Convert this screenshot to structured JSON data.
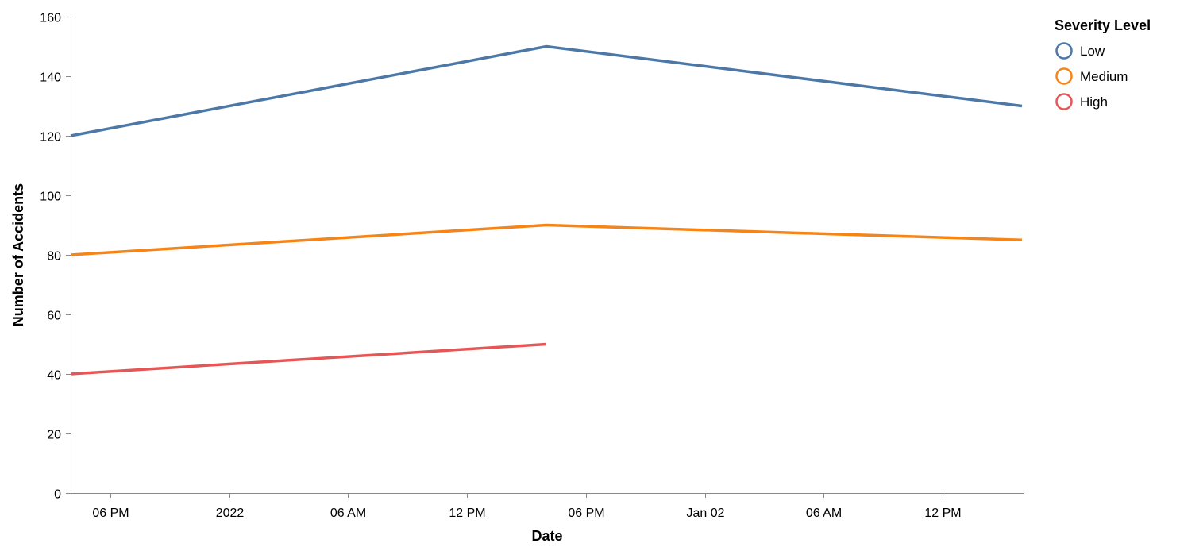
{
  "chart_data": {
    "type": "line",
    "x_type": "datetime",
    "xlabel": "Date",
    "ylabel": "Number of Accidents",
    "ylim": [
      0,
      160
    ],
    "y_ticks": [
      0,
      20,
      40,
      60,
      80,
      100,
      120,
      140,
      160
    ],
    "xlim": [
      "2022-01-01T16:00:00",
      "2022-01-02T16:00:00"
    ],
    "x_ticks": [
      {
        "t": "2022-01-01T18:00:00",
        "label": "06 PM"
      },
      {
        "t": "2022-01-02T00:00:00",
        "label": "2022"
      },
      {
        "t": "2022-01-02T06:00:00",
        "label": "06 AM"
      },
      {
        "t": "2022-01-02T12:00:00",
        "label": "12 PM"
      },
      {
        "t": "2022-01-02T18:00:00",
        "label": "06 PM"
      },
      {
        "t": "2022-01-03T00:00:00",
        "label": "Jan 02"
      },
      {
        "t": "2022-01-03T06:00:00",
        "label": "06 AM"
      },
      {
        "t": "2022-01-03T12:00:00",
        "label": "12 PM"
      }
    ],
    "legend": {
      "title": "Severity Level",
      "placement": "top-right"
    },
    "grid": false,
    "series": [
      {
        "name": "Low",
        "color": "#4c78a8",
        "points": [
          {
            "x": "2022-01-01T16:00:00",
            "y": 120
          },
          {
            "x": "2022-01-02T16:00:00",
            "y": 150
          },
          {
            "x": "2022-01-03T16:00:00",
            "y": 130
          }
        ]
      },
      {
        "name": "Medium",
        "color": "#f58518",
        "points": [
          {
            "x": "2022-01-01T16:00:00",
            "y": 80
          },
          {
            "x": "2022-01-02T16:00:00",
            "y": 90
          },
          {
            "x": "2022-01-03T16:00:00",
            "y": 85
          }
        ]
      },
      {
        "name": "High",
        "color": "#e45756",
        "points": [
          {
            "x": "2022-01-01T16:00:00",
            "y": 40
          },
          {
            "x": "2022-01-02T16:00:00",
            "y": 50
          }
        ]
      }
    ]
  }
}
